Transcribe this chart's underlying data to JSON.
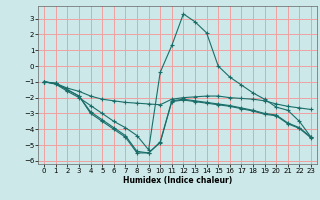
{
  "title": "",
  "xlabel": "Humidex (Indice chaleur)",
  "bg_color": "#cce8e8",
  "grid_color": "#f0a0a0",
  "line_color": "#1a6e6a",
  "xlim": [
    -0.5,
    23.5
  ],
  "ylim": [
    -6.2,
    3.8
  ],
  "xticks": [
    0,
    1,
    2,
    3,
    4,
    5,
    6,
    7,
    8,
    9,
    10,
    11,
    12,
    13,
    14,
    15,
    16,
    17,
    18,
    19,
    20,
    21,
    22,
    23
  ],
  "yticks": [
    -6,
    -5,
    -4,
    -3,
    -2,
    -1,
    0,
    1,
    2,
    3
  ],
  "series": [
    {
      "x": [
        0,
        1,
        2,
        3,
        4,
        5,
        6,
        7,
        8,
        9,
        10,
        11,
        12,
        13,
        14,
        15,
        16,
        17,
        18,
        19,
        20,
        21,
        22,
        23
      ],
      "y": [
        -1.0,
        -1.15,
        -1.6,
        -2.0,
        -2.5,
        -3.0,
        -3.5,
        -3.9,
        -4.4,
        -5.3,
        -0.4,
        1.3,
        3.3,
        2.8,
        2.1,
        0.0,
        -0.7,
        -1.2,
        -1.7,
        -2.1,
        -2.6,
        -2.8,
        -3.5,
        -4.5
      ]
    },
    {
      "x": [
        0,
        1,
        2,
        3,
        4,
        5,
        6,
        7,
        8,
        9,
        10,
        11,
        12,
        13,
        14,
        15,
        16,
        17,
        18,
        19,
        20,
        21,
        22,
        23
      ],
      "y": [
        -1.0,
        -1.1,
        -1.4,
        -1.6,
        -1.9,
        -2.1,
        -2.2,
        -2.3,
        -2.35,
        -2.4,
        -2.45,
        -2.1,
        -2.0,
        -1.95,
        -1.9,
        -1.9,
        -2.0,
        -2.05,
        -2.1,
        -2.2,
        -2.4,
        -2.55,
        -2.65,
        -2.75
      ]
    },
    {
      "x": [
        0,
        1,
        2,
        3,
        4,
        5,
        6,
        7,
        8,
        9,
        10,
        11,
        12,
        13,
        14,
        15,
        16,
        17,
        18,
        19,
        20,
        21,
        22,
        23
      ],
      "y": [
        -1.0,
        -1.1,
        -1.5,
        -1.9,
        -3.0,
        -3.5,
        -4.0,
        -4.5,
        -5.5,
        -5.5,
        -4.8,
        -2.2,
        -2.1,
        -2.2,
        -2.3,
        -2.4,
        -2.5,
        -2.65,
        -2.8,
        -3.0,
        -3.1,
        -3.6,
        -3.9,
        -4.5
      ]
    },
    {
      "x": [
        0,
        1,
        2,
        3,
        4,
        5,
        6,
        7,
        8,
        9,
        10,
        11,
        12,
        13,
        14,
        15,
        16,
        17,
        18,
        19,
        20,
        21,
        22,
        23
      ],
      "y": [
        -1.0,
        -1.1,
        -1.5,
        -1.9,
        -2.9,
        -3.4,
        -3.9,
        -4.4,
        -5.4,
        -5.5,
        -4.85,
        -2.25,
        -2.15,
        -2.25,
        -2.35,
        -2.45,
        -2.55,
        -2.7,
        -2.85,
        -3.05,
        -3.15,
        -3.65,
        -3.95,
        -4.55
      ]
    }
  ]
}
